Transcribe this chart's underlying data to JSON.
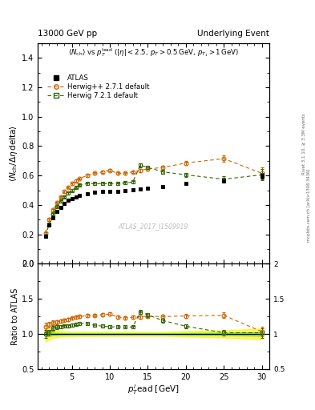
{
  "title_left": "13000 GeV pp",
  "title_right": "Underlying Event",
  "watermark": "ATLAS_2017_I1509919",
  "atlas_x": [
    1.5,
    2.0,
    2.5,
    3.0,
    3.5,
    4.0,
    4.5,
    5.0,
    5.5,
    6.0,
    7.0,
    8.0,
    9.0,
    10.0,
    11.0,
    12.0,
    13.0,
    14.0,
    15.0,
    17.0,
    20.0,
    25.0,
    30.0
  ],
  "atlas_y": [
    0.19,
    0.265,
    0.315,
    0.355,
    0.385,
    0.41,
    0.43,
    0.445,
    0.455,
    0.465,
    0.475,
    0.485,
    0.49,
    0.495,
    0.495,
    0.5,
    0.505,
    0.51,
    0.515,
    0.525,
    0.545,
    0.565,
    0.595
  ],
  "atlas_yerr": [
    0.007,
    0.007,
    0.006,
    0.006,
    0.005,
    0.005,
    0.005,
    0.005,
    0.005,
    0.005,
    0.005,
    0.005,
    0.005,
    0.005,
    0.005,
    0.005,
    0.005,
    0.005,
    0.005,
    0.005,
    0.007,
    0.01,
    0.015
  ],
  "hpp_x": [
    1.5,
    2.0,
    2.5,
    3.0,
    3.5,
    4.0,
    4.5,
    5.0,
    5.5,
    6.0,
    7.0,
    8.0,
    9.0,
    10.0,
    11.0,
    12.0,
    13.0,
    14.0,
    15.0,
    17.0,
    20.0,
    25.0,
    30.0
  ],
  "hpp_y": [
    0.21,
    0.3,
    0.365,
    0.415,
    0.455,
    0.49,
    0.52,
    0.545,
    0.565,
    0.58,
    0.6,
    0.615,
    0.625,
    0.635,
    0.615,
    0.615,
    0.625,
    0.635,
    0.645,
    0.655,
    0.685,
    0.715,
    0.615
  ],
  "hpp_yerr": [
    0.007,
    0.007,
    0.007,
    0.007,
    0.007,
    0.007,
    0.007,
    0.007,
    0.007,
    0.007,
    0.008,
    0.008,
    0.009,
    0.009,
    0.009,
    0.009,
    0.009,
    0.01,
    0.01,
    0.012,
    0.015,
    0.02,
    0.04
  ],
  "h72_x": [
    1.5,
    2.0,
    2.5,
    3.0,
    3.5,
    4.0,
    4.5,
    5.0,
    5.5,
    6.0,
    7.0,
    8.0,
    9.0,
    10.0,
    11.0,
    12.0,
    13.0,
    14.0,
    15.0,
    17.0,
    20.0,
    25.0,
    30.0
  ],
  "h72_y": [
    0.19,
    0.27,
    0.34,
    0.39,
    0.425,
    0.455,
    0.48,
    0.5,
    0.52,
    0.535,
    0.545,
    0.545,
    0.545,
    0.545,
    0.545,
    0.55,
    0.555,
    0.67,
    0.655,
    0.625,
    0.605,
    0.575,
    0.605
  ],
  "h72_yerr": [
    0.007,
    0.007,
    0.007,
    0.007,
    0.007,
    0.007,
    0.007,
    0.007,
    0.007,
    0.007,
    0.008,
    0.008,
    0.009,
    0.009,
    0.009,
    0.009,
    0.009,
    0.012,
    0.012,
    0.012,
    0.015,
    0.022,
    0.038
  ],
  "atlas_color": "#000000",
  "hpp_color": "#cc6600",
  "h72_color": "#336600",
  "band_color_yellow": "#ffff00",
  "band_color_green": "#00aa00",
  "ylim_main": [
    0.0,
    1.5
  ],
  "ylim_ratio": [
    0.5,
    2.0
  ],
  "xlim": [
    0.5,
    31
  ],
  "fig_width": 3.93,
  "fig_height": 5.12
}
